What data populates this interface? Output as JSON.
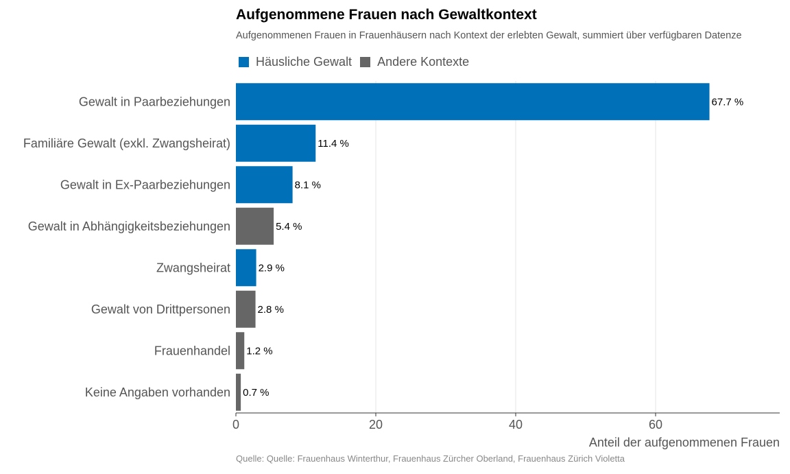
{
  "chart_data": {
    "type": "bar",
    "orientation": "horizontal",
    "title": "Aufgenommene Frauen nach Gewaltkontext",
    "subtitle": "Aufgenommenen Frauen in Frauenhäusern nach Kontext der erlebten Gewalt, summiert über verfügbaren Datenze",
    "caption": "Quelle: Quelle: Frauenhaus Winterthur, Frauenhaus Zürcher Oberland, Frauenhaus Zürich Violetta",
    "xlabel": "Anteil der aufgenommenen Frauen",
    "ylabel": "",
    "xlim": [
      0,
      77
    ],
    "xticks": [
      0,
      20,
      40,
      60
    ],
    "grid": "vertical",
    "legend_position": "top-left",
    "series": [
      {
        "name": "Häusliche Gewalt",
        "color": "#0070B8"
      },
      {
        "name": "Andere Kontexte",
        "color": "#666666"
      }
    ],
    "categories": [
      "Gewalt in Paarbeziehungen",
      "Familiäre Gewalt (exkl. Zwangsheirat)",
      "Gewalt in Ex-Paarbeziehungen",
      "Gewalt in Abhängigkeitsbeziehungen",
      "Zwangsheirat",
      "Gewalt von Drittpersonen",
      "Frauenhandel",
      "Keine Angaben vorhanden"
    ],
    "values": [
      67.7,
      11.4,
      8.1,
      5.4,
      2.9,
      2.8,
      1.2,
      0.7
    ],
    "value_labels": [
      "67.7 %",
      "11.4 %",
      "8.1 %",
      "5.4 %",
      "2.9 %",
      "2.8 %",
      "1.2 %",
      "0.7 %"
    ],
    "bar_series": [
      0,
      0,
      0,
      1,
      0,
      1,
      1,
      1
    ]
  }
}
